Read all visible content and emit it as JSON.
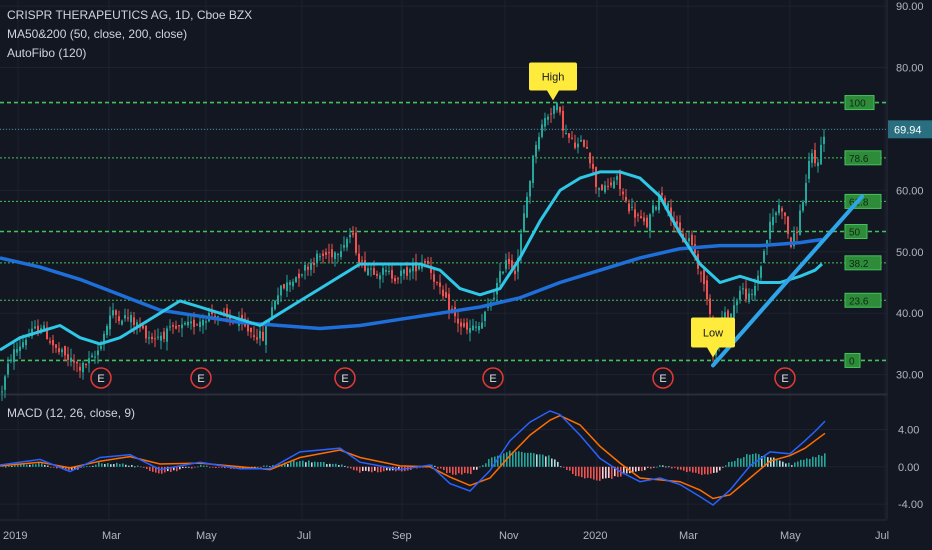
{
  "legend": {
    "symbol": "CRISPR THERAPEUTICS AG, 1D, Cboe BZX",
    "ma": "MA50&200 (50, close, 200, close)",
    "fib": "AutoFibo (120)",
    "macd": "MACD (12, 26, close, 9)"
  },
  "colors": {
    "background": "#131722",
    "up_candle": "#26a69a",
    "down_candle": "#ef5350",
    "ma50": "#2ec7e6",
    "ma200": "#1e6fd9",
    "fib_line": "#44c25a",
    "fib_label_bg": "#2e8b3a",
    "trend_line": "#2ea5e8",
    "macd_line": "#2962ff",
    "signal_line": "#ff6d00",
    "earnings": "#e53935",
    "annotation": "#ffeb3b",
    "price_label_bg": "#2a6f80"
  },
  "chart_data": {
    "type": "candlestick",
    "price_axis": {
      "range": [
        27,
        91
      ],
      "ticks": [
        "90.00",
        "80.00",
        "70.00",
        "60.00",
        "50.00",
        "40.00",
        "30.00"
      ]
    },
    "time_axis": {
      "labels": [
        "2019",
        "Mar",
        "May",
        "Jul",
        "Sep",
        "Nov",
        "2020",
        "Mar",
        "May",
        "Jul"
      ]
    },
    "last_price": "69.94",
    "ma50": [
      [
        0,
        34
      ],
      [
        20,
        36
      ],
      [
        40,
        37
      ],
      [
        60,
        38
      ],
      [
        80,
        36
      ],
      [
        100,
        35
      ],
      [
        120,
        36
      ],
      [
        140,
        38
      ],
      [
        160,
        40
      ],
      [
        180,
        42
      ],
      [
        200,
        41
      ],
      [
        220,
        40
      ],
      [
        240,
        39
      ],
      [
        260,
        38
      ],
      [
        280,
        40
      ],
      [
        300,
        42
      ],
      [
        320,
        44
      ],
      [
        340,
        46
      ],
      [
        360,
        48
      ],
      [
        380,
        48
      ],
      [
        400,
        48
      ],
      [
        420,
        48
      ],
      [
        440,
        47
      ],
      [
        460,
        44
      ],
      [
        480,
        43
      ],
      [
        500,
        44
      ],
      [
        520,
        49
      ],
      [
        540,
        55
      ],
      [
        560,
        60
      ],
      [
        580,
        62
      ],
      [
        600,
        63
      ],
      [
        620,
        63
      ],
      [
        640,
        62
      ],
      [
        660,
        59
      ],
      [
        680,
        53
      ],
      [
        700,
        48
      ],
      [
        720,
        45
      ],
      [
        740,
        46
      ],
      [
        760,
        45
      ],
      [
        780,
        45
      ],
      [
        800,
        46
      ],
      [
        815,
        47
      ],
      [
        822,
        48
      ]
    ],
    "ma200": [
      [
        0,
        49
      ],
      [
        40,
        47.5
      ],
      [
        80,
        45.5
      ],
      [
        120,
        43
      ],
      [
        160,
        40.5
      ],
      [
        200,
        39.5
      ],
      [
        240,
        38.5
      ],
      [
        280,
        38
      ],
      [
        320,
        37.5
      ],
      [
        360,
        38
      ],
      [
        400,
        39
      ],
      [
        440,
        40
      ],
      [
        480,
        41
      ],
      [
        520,
        42.5
      ],
      [
        560,
        45
      ],
      [
        600,
        47
      ],
      [
        640,
        49
      ],
      [
        680,
        50.5
      ],
      [
        720,
        51
      ],
      [
        760,
        51
      ],
      [
        800,
        51.5
      ],
      [
        822,
        52
      ]
    ],
    "fibonacci": [
      {
        "label": "100",
        "value": 74.3
      },
      {
        "label": "78.6",
        "value": 65.3
      },
      {
        "label": "61.8",
        "value": 58.2
      },
      {
        "label": "50",
        "value": 53.3
      },
      {
        "label": "38.2",
        "value": 48.2
      },
      {
        "label": "23.6",
        "value": 42.1
      },
      {
        "label": "0",
        "value": 32.3
      }
    ],
    "annotations": [
      {
        "text": "High",
        "x": 553,
        "value": 74.3
      },
      {
        "text": "Low",
        "x": 713,
        "value": 32.3
      }
    ],
    "trend_line": [
      [
        713,
        31.5
      ],
      [
        862,
        59
      ]
    ],
    "earnings_markers": [
      "E",
      "E",
      "E",
      "E",
      "E",
      "E"
    ],
    "earnings_x": [
      101,
      201,
      345,
      493,
      663,
      785
    ],
    "price_key": [
      [
        0,
        27
      ],
      [
        10,
        33
      ],
      [
        25,
        36
      ],
      [
        40,
        38
      ],
      [
        55,
        34
      ],
      [
        80,
        31
      ],
      [
        95,
        33
      ],
      [
        110,
        40
      ],
      [
        130,
        39
      ],
      [
        150,
        36
      ],
      [
        170,
        37
      ],
      [
        190,
        38
      ],
      [
        210,
        40
      ],
      [
        230,
        39
      ],
      [
        250,
        37
      ],
      [
        262,
        36
      ],
      [
        275,
        43
      ],
      [
        295,
        46
      ],
      [
        315,
        49
      ],
      [
        335,
        50
      ],
      [
        350,
        53
      ],
      [
        360,
        48
      ],
      [
        375,
        47
      ],
      [
        395,
        46
      ],
      [
        410,
        47
      ],
      [
        425,
        49
      ],
      [
        440,
        43
      ],
      [
        455,
        39
      ],
      [
        465,
        37
      ],
      [
        480,
        38
      ],
      [
        495,
        44
      ],
      [
        505,
        49
      ],
      [
        515,
        47
      ],
      [
        525,
        58
      ],
      [
        535,
        68
      ],
      [
        545,
        72
      ],
      [
        555,
        74
      ],
      [
        565,
        69
      ],
      [
        575,
        67
      ],
      [
        585,
        68
      ],
      [
        595,
        61
      ],
      [
        605,
        60
      ],
      [
        615,
        62
      ],
      [
        625,
        58
      ],
      [
        635,
        56
      ],
      [
        645,
        54
      ],
      [
        660,
        60
      ],
      [
        670,
        56
      ],
      [
        680,
        52
      ],
      [
        690,
        52
      ],
      [
        700,
        46
      ],
      [
        708,
        42
      ],
      [
        713,
        32.5
      ],
      [
        720,
        39
      ],
      [
        730,
        40
      ],
      [
        740,
        44
      ],
      [
        750,
        42
      ],
      [
        760,
        48
      ],
      [
        770,
        55
      ],
      [
        780,
        58
      ],
      [
        790,
        51
      ],
      [
        795,
        53
      ],
      [
        805,
        61
      ],
      [
        810,
        66
      ],
      [
        815,
        64
      ],
      [
        825,
        70
      ]
    ],
    "macd_axis": {
      "range": [
        -5.6,
        7.6
      ],
      "ticks": [
        "4.00",
        "0.00",
        "-4.00"
      ]
    },
    "macd_line": [
      [
        0,
        0.2
      ],
      [
        40,
        0.8
      ],
      [
        70,
        -0.5
      ],
      [
        100,
        1.0
      ],
      [
        130,
        1.3
      ],
      [
        160,
        -0.3
      ],
      [
        200,
        0.5
      ],
      [
        240,
        -0.2
      ],
      [
        270,
        -0.2
      ],
      [
        300,
        1.6
      ],
      [
        340,
        2.0
      ],
      [
        360,
        0.5
      ],
      [
        400,
        -0.3
      ],
      [
        430,
        0.2
      ],
      [
        450,
        -1.8
      ],
      [
        470,
        -2.6
      ],
      [
        490,
        -0.4
      ],
      [
        510,
        2.8
      ],
      [
        530,
        4.8
      ],
      [
        550,
        6.0
      ],
      [
        560,
        5.6
      ],
      [
        580,
        3.4
      ],
      [
        600,
        0.9
      ],
      [
        620,
        -0.5
      ],
      [
        640,
        -1.6
      ],
      [
        660,
        -1.2
      ],
      [
        680,
        -1.9
      ],
      [
        700,
        -3.2
      ],
      [
        713,
        -4.1
      ],
      [
        730,
        -2.5
      ],
      [
        750,
        0.1
      ],
      [
        770,
        1.6
      ],
      [
        790,
        1.4
      ],
      [
        805,
        2.8
      ],
      [
        815,
        3.8
      ],
      [
        825,
        4.9
      ]
    ],
    "signal_line": [
      [
        0,
        0.1
      ],
      [
        40,
        0.5
      ],
      [
        70,
        -0.1
      ],
      [
        100,
        0.6
      ],
      [
        130,
        1.1
      ],
      [
        160,
        0.3
      ],
      [
        200,
        0.4
      ],
      [
        240,
        0.0
      ],
      [
        270,
        -0.3
      ],
      [
        300,
        1.0
      ],
      [
        340,
        1.8
      ],
      [
        360,
        1.0
      ],
      [
        400,
        0.1
      ],
      [
        430,
        0.0
      ],
      [
        450,
        -1.1
      ],
      [
        470,
        -2.0
      ],
      [
        490,
        -1.2
      ],
      [
        510,
        1.2
      ],
      [
        530,
        3.4
      ],
      [
        550,
        5.0
      ],
      [
        560,
        5.5
      ],
      [
        580,
        4.5
      ],
      [
        600,
        2.2
      ],
      [
        620,
        0.4
      ],
      [
        640,
        -1.2
      ],
      [
        660,
        -1.4
      ],
      [
        680,
        -1.6
      ],
      [
        700,
        -2.5
      ],
      [
        713,
        -3.4
      ],
      [
        730,
        -3.0
      ],
      [
        750,
        -1.2
      ],
      [
        770,
        0.6
      ],
      [
        790,
        1.2
      ],
      [
        805,
        2.0
      ],
      [
        815,
        2.8
      ],
      [
        825,
        3.6
      ]
    ]
  }
}
